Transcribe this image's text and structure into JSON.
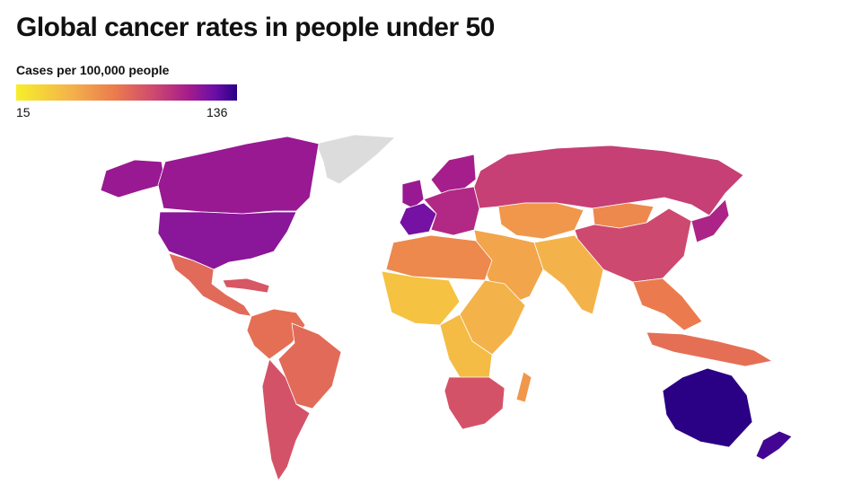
{
  "title": "Global cancer rates in people under 50",
  "legend": {
    "label": "Cases per 100,000 people",
    "min": "15",
    "max": "136",
    "min_value": 15,
    "max_value": 136
  },
  "colors": {
    "no_data": "#dcdcdc",
    "ramp": [
      "#f6ef2a",
      "#f4b24a",
      "#eb7a4e",
      "#cf4a6e",
      "#a51c8c",
      "#6a0ea8",
      "#2a0084"
    ]
  },
  "regions": [
    {
      "name": "greenland",
      "value": null
    },
    {
      "name": "alaska",
      "value": 100
    },
    {
      "name": "canada",
      "value": 100
    },
    {
      "name": "united-states",
      "value": 105
    },
    {
      "name": "mexico-central-america",
      "value": 62
    },
    {
      "name": "caribbean",
      "value": 70
    },
    {
      "name": "south-america-north",
      "value": 60
    },
    {
      "name": "brazil",
      "value": 62
    },
    {
      "name": "southern-cone",
      "value": 72
    },
    {
      "name": "western-europe",
      "value": 100
    },
    {
      "name": "france",
      "value": 112
    },
    {
      "name": "scandinavia",
      "value": 95
    },
    {
      "name": "eastern-europe",
      "value": 90
    },
    {
      "name": "russia",
      "value": 80
    },
    {
      "name": "central-asia",
      "value": 45
    },
    {
      "name": "mongolia",
      "value": 50
    },
    {
      "name": "china",
      "value": 76
    },
    {
      "name": "korea-japan",
      "value": 92
    },
    {
      "name": "middle-east",
      "value": 40
    },
    {
      "name": "india-south-asia",
      "value": 35
    },
    {
      "name": "southeast-asia",
      "value": 55
    },
    {
      "name": "indonesia",
      "value": 60
    },
    {
      "name": "north-africa",
      "value": 50
    },
    {
      "name": "west-africa",
      "value": 30
    },
    {
      "name": "east-africa",
      "value": 35
    },
    {
      "name": "central-africa",
      "value": 32
    },
    {
      "name": "southern-africa",
      "value": 72
    },
    {
      "name": "madagascar",
      "value": 45
    },
    {
      "name": "australia",
      "value": 136
    },
    {
      "name": "new-zealand",
      "value": 128
    }
  ]
}
